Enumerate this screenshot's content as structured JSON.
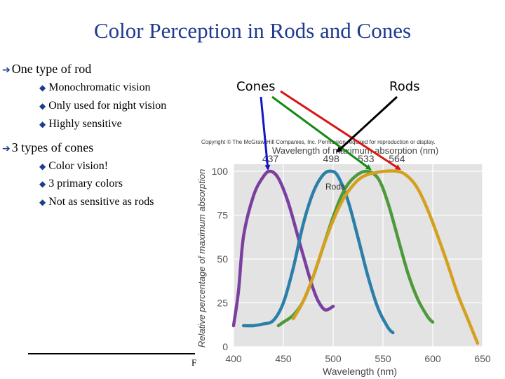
{
  "title": "Color Perception in Rods and Cones",
  "bullets": [
    {
      "text": "One type of rod",
      "sub": [
        "Monochromatic vision",
        "Only used for night vision",
        "Highly sensitive"
      ]
    },
    {
      "text": "3 types of cones",
      "sub": [
        "Color vision!",
        "3 primary colors",
        "Not as sensitive as rods"
      ]
    }
  ],
  "labels": {
    "cones": "Cones",
    "rods": "Rods"
  },
  "icons": {
    "level1": "arrow-right-icon",
    "level2": "diamond-bullet-icon"
  },
  "fragment": "F",
  "pointer_colors": {
    "blue": "#1515c8",
    "green": "#138a13",
    "red": "#d81515",
    "black": "#000000"
  },
  "figure": {
    "copyright": "Copyright © The McGraw-Hill Companies, Inc. Permission required for reproduction or display.",
    "top_label": "Wavelength of maximum absorption (nm)",
    "rods_label": "Rods",
    "chart_data": {
      "type": "line",
      "xlabel": "Wavelength (nm)",
      "ylabel": "Relative percentage of maximum absorption",
      "xlim": [
        400,
        650
      ],
      "ylim": [
        0,
        100
      ],
      "x_ticks": [
        "400",
        "450",
        "500",
        "550",
        "600",
        "650"
      ],
      "y_ticks": [
        "0",
        "25",
        "50",
        "75",
        "100"
      ],
      "peak_labels": [
        "437",
        "498",
        "533",
        "564"
      ],
      "series": [
        {
          "peak": 437,
          "color": "#7a3fa0",
          "x": [
            400,
            405,
            410,
            420,
            430,
            437,
            445,
            455,
            465,
            475,
            480,
            485,
            492,
            500
          ],
          "y": [
            12,
            32,
            63,
            86,
            97,
            100,
            96,
            82,
            62,
            42,
            33,
            26,
            21,
            23
          ]
        },
        {
          "peak": 498,
          "color": "#2b7fa8",
          "x": [
            410,
            420,
            430,
            440,
            450,
            460,
            470,
            480,
            490,
            498,
            505,
            515,
            525,
            535,
            545,
            555,
            560
          ],
          "y": [
            12,
            12,
            13,
            15,
            25,
            45,
            70,
            88,
            98,
            100,
            97,
            83,
            62,
            40,
            22,
            11,
            8
          ]
        },
        {
          "peak": 533,
          "color": "#4e9a3a",
          "x": [
            445,
            450,
            460,
            470,
            480,
            490,
            500,
            510,
            520,
            533,
            545,
            555,
            565,
            575,
            585,
            595,
            600
          ],
          "y": [
            12,
            14,
            18,
            26,
            40,
            57,
            74,
            88,
            96,
            100,
            96,
            82,
            62,
            42,
            27,
            17,
            14
          ]
        },
        {
          "peak": 564,
          "color": "#d4a020",
          "x": [
            460,
            470,
            480,
            490,
            500,
            510,
            520,
            530,
            545,
            564,
            575,
            585,
            595,
            605,
            615,
            625,
            635,
            645
          ],
          "y": [
            16,
            26,
            40,
            57,
            72,
            84,
            92,
            97,
            99.5,
            100,
            97,
            90,
            78,
            63,
            47,
            30,
            16,
            2
          ]
        }
      ]
    }
  }
}
